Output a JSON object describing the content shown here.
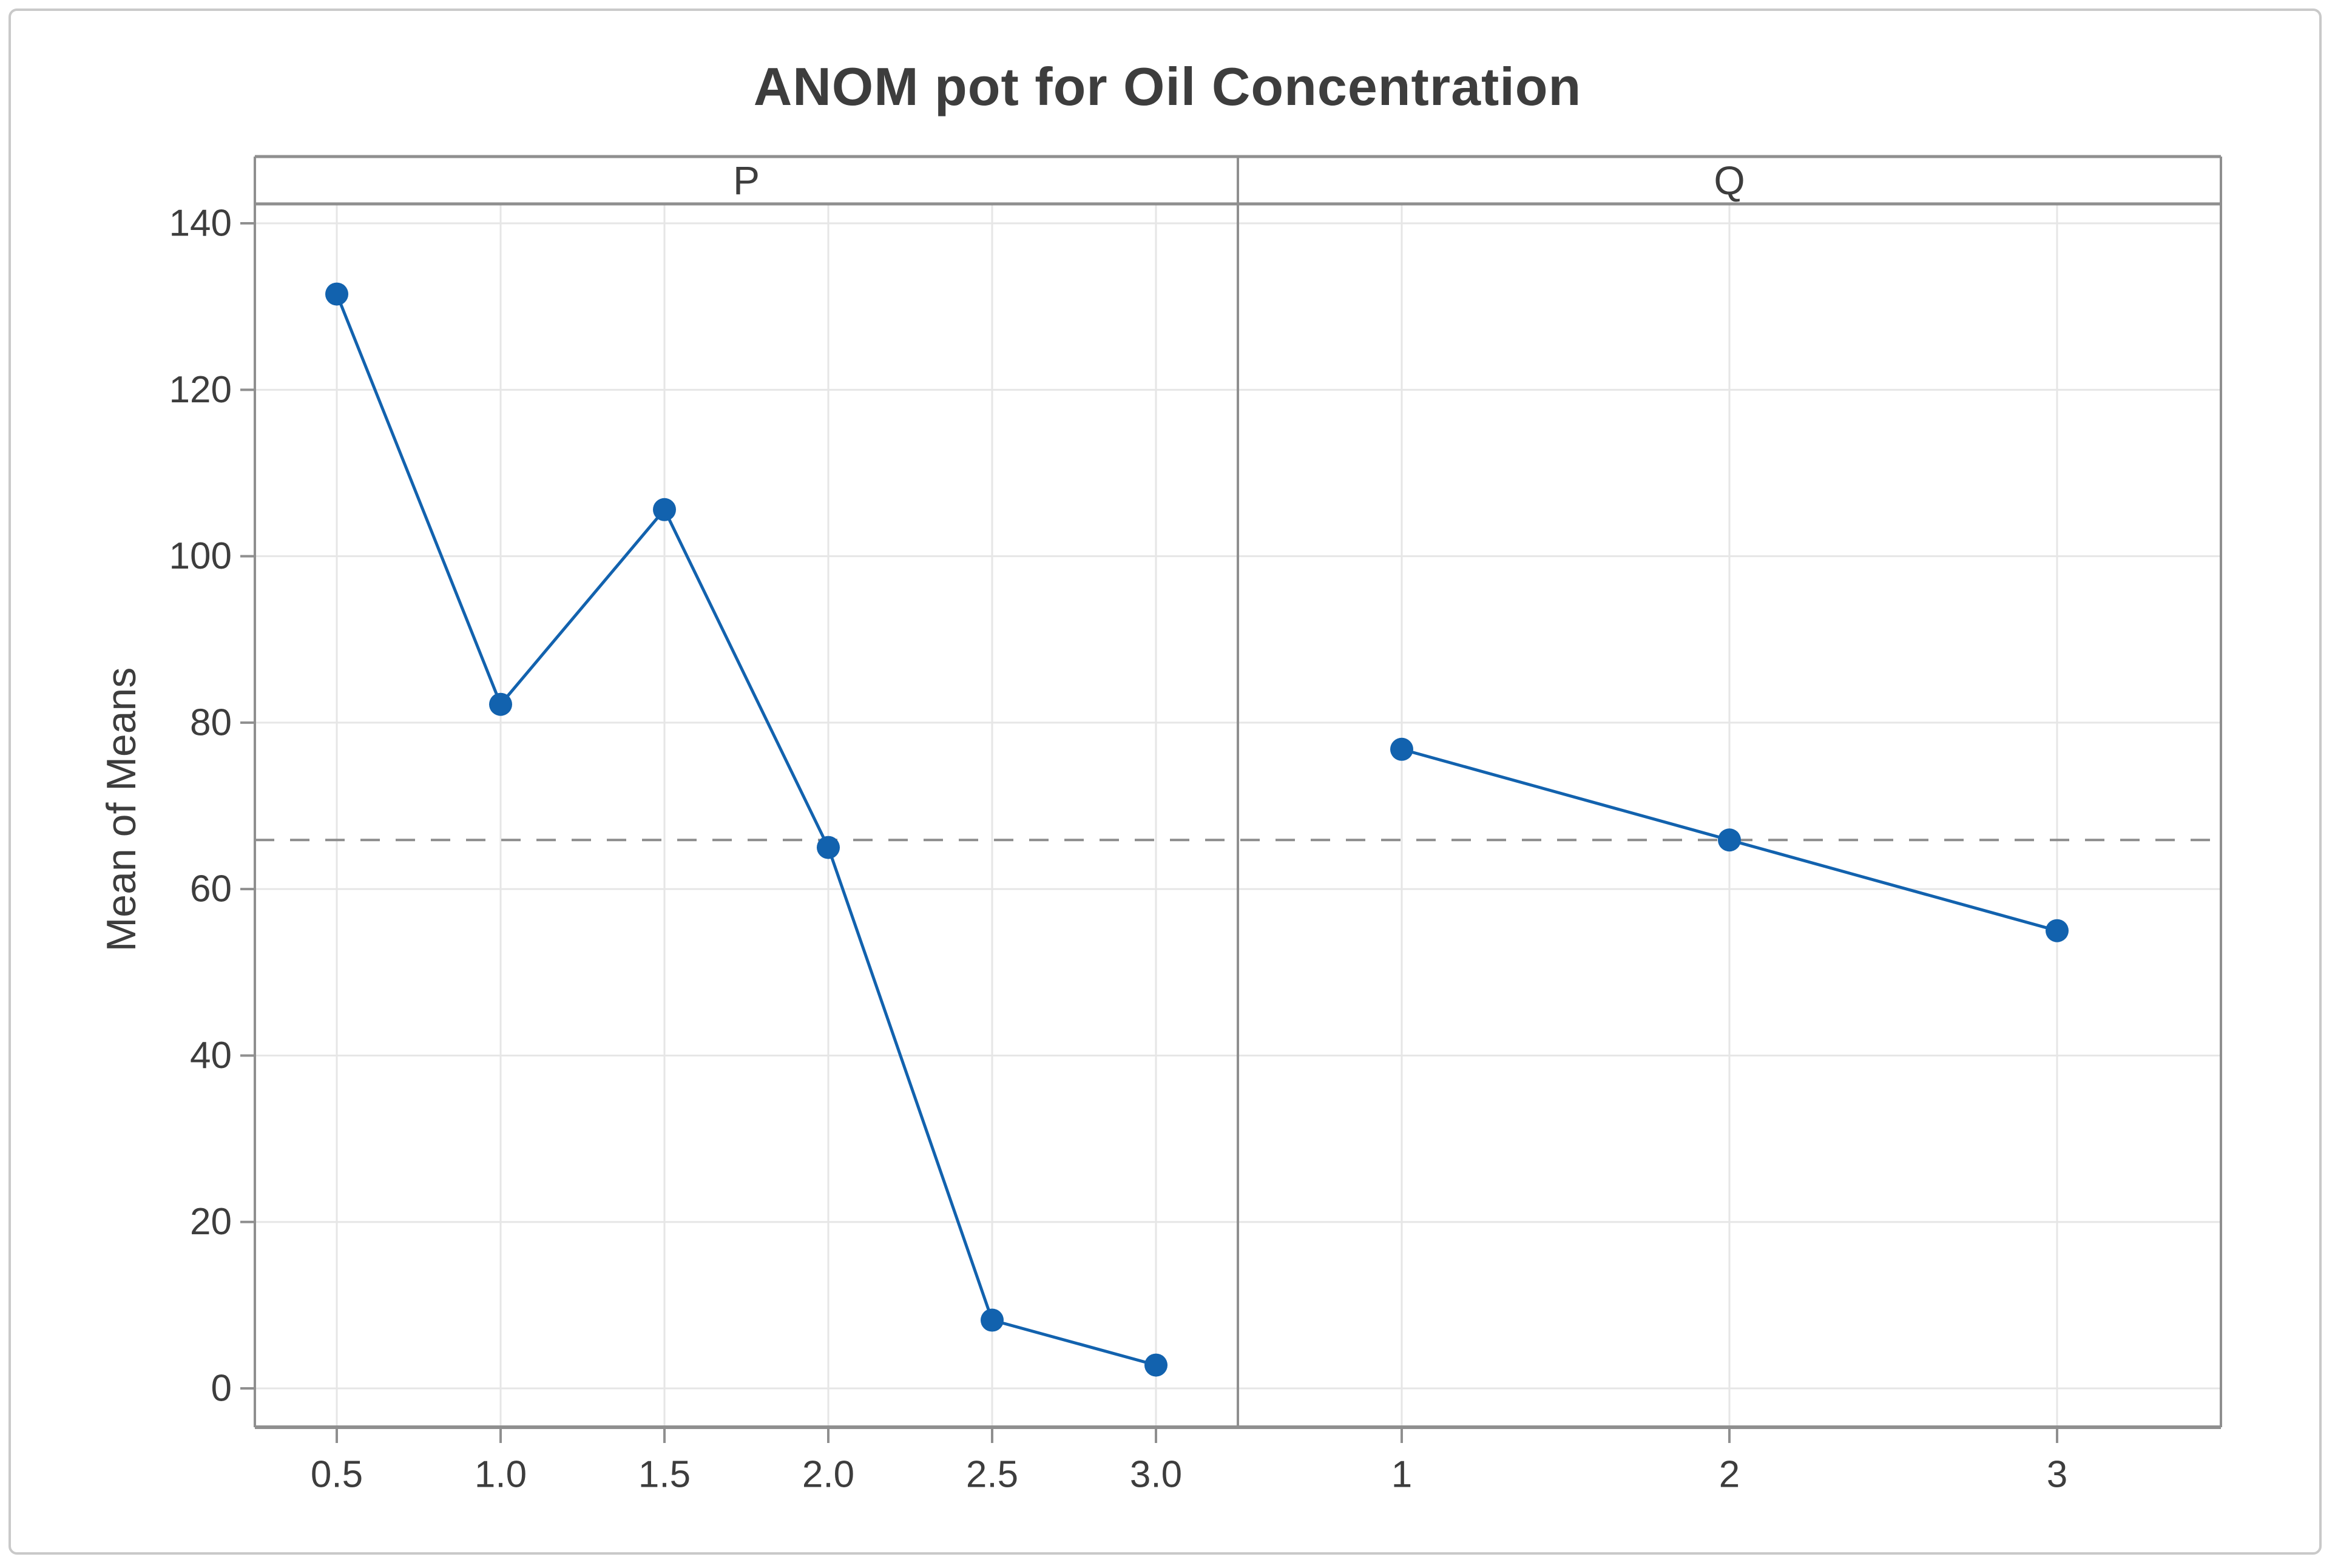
{
  "chart_data": {
    "type": "line",
    "title": "ANOM pot for Oil Concentration",
    "ylabel": "Mean of Means",
    "ylim": [
      -5,
      143
    ],
    "yticks": [
      0,
      20,
      40,
      60,
      80,
      100,
      120,
      140
    ],
    "grid": true,
    "legend": "none",
    "center_line": 65.9,
    "panels": [
      {
        "label": "P",
        "categories": [
          "0.5",
          "1.0",
          "1.5",
          "2.0",
          "2.5",
          "3.0"
        ],
        "values": [
          131.5,
          82.2,
          105.6,
          65.0,
          8.2,
          2.8
        ]
      },
      {
        "label": "Q",
        "categories": [
          "1",
          "2",
          "3"
        ],
        "values": [
          76.8,
          65.9,
          55.0
        ]
      }
    ]
  },
  "colors": {
    "series_blue": "#1262AE",
    "center_line_gray": "#8C8C8C",
    "axis_border_gray": "#8F8F8F",
    "gridline_gray": "#E6E6E6",
    "text_dark": "#3D3D3D",
    "figure_border": "#C9C9C9",
    "background": "#FFFFFF"
  }
}
